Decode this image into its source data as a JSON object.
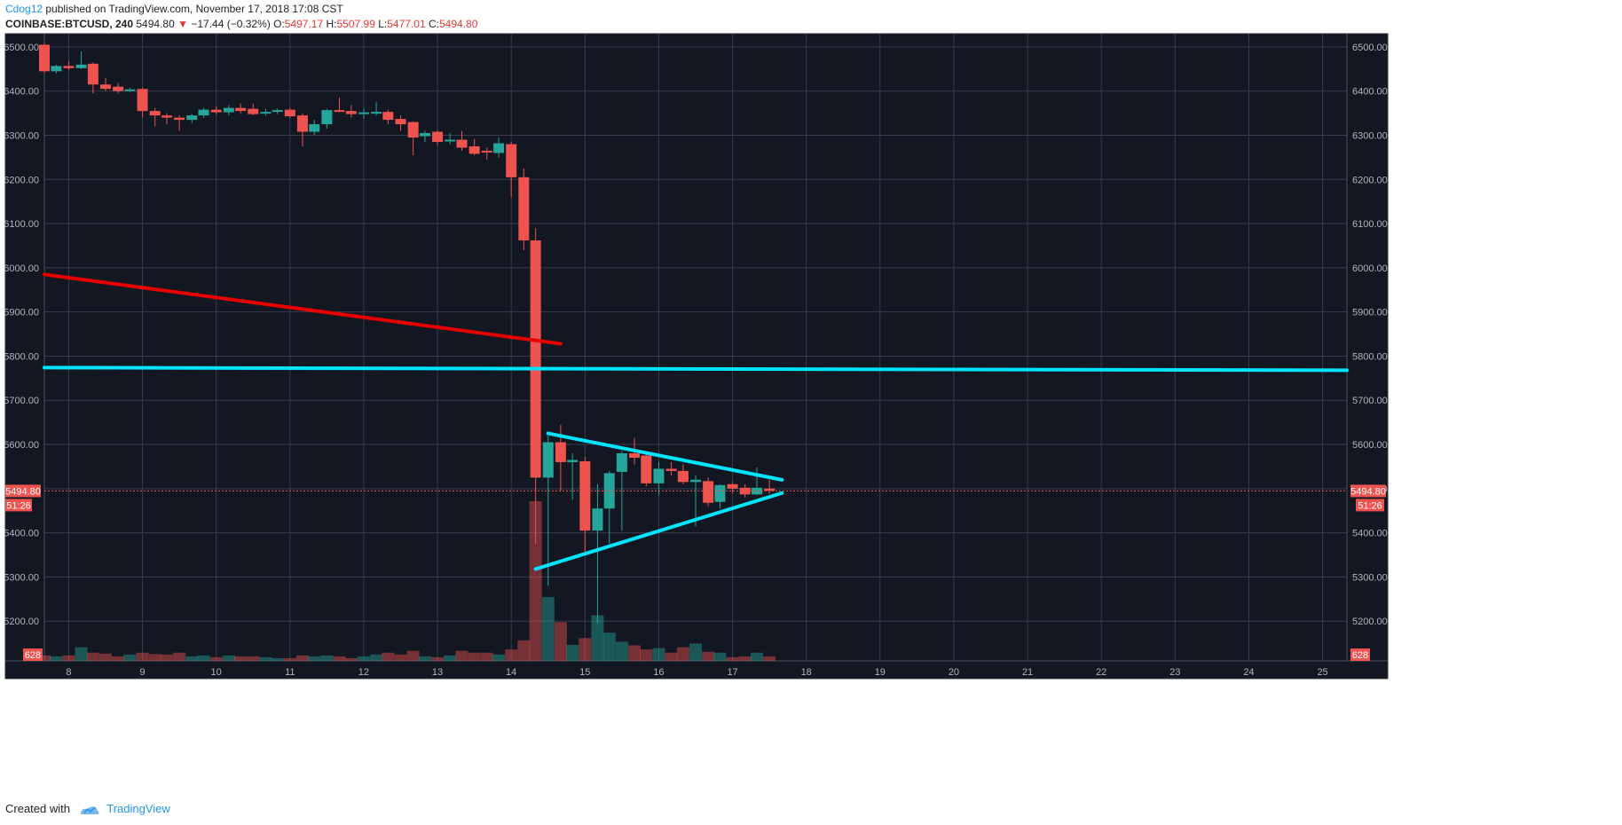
{
  "header": {
    "author": "Cdog12",
    "published_text": " published on TradingView.com, November 17, 2018 17:08 CST",
    "symbol": "COINBASE:BTCUSD, 240",
    "last_price": "5494.80",
    "change_arrow": "▼",
    "change": "−17.44 (−0.32%)",
    "open_label": "O:",
    "open": "5497.17",
    "high_label": "H:",
    "high": "5507.99",
    "low_label": "L:",
    "low": "5477.01",
    "close_label": "C:",
    "close": "5494.80"
  },
  "footer": {
    "created_with": "Created with",
    "brand": "TradingView"
  },
  "colors": {
    "background": "#131722",
    "grid": "#363c4e",
    "axis_text": "#b2b5be",
    "up": "#26a69a",
    "down": "#ef5350",
    "red_trendline": "#e60000",
    "cyan_lines": "#00e5ff"
  },
  "chart_data": {
    "type": "candlestick",
    "symbol": "COINBASE:BTCUSD",
    "interval": "240",
    "ylim": [
      5110,
      6530
    ],
    "y_ticks": [
      "5200.00",
      "5300.00",
      "5400.00",
      "5500.00",
      "5600.00",
      "5700.00",
      "5800.00",
      "5900.00",
      "6000.00",
      "6100.00",
      "6200.00",
      "6300.00",
      "6400.00",
      "6500.00"
    ],
    "x_ticks": [
      "8",
      "9",
      "10",
      "11",
      "12",
      "13",
      "14",
      "15",
      "16",
      "17",
      "18",
      "19",
      "20",
      "21",
      "22",
      "23",
      "24",
      "25"
    ],
    "xlim": [
      7.67,
      25.33
    ],
    "last_price_label": "5494.80",
    "last_price": 5494.8,
    "countdown_label": "51:26",
    "volume_label": "628",
    "candles": [
      {
        "t": 7.67,
        "o": 6505,
        "h": 6510,
        "l": 6440,
        "c": 6445
      },
      {
        "t": 7.83,
        "o": 6445,
        "h": 6460,
        "l": 6440,
        "c": 6457
      },
      {
        "t": 8.0,
        "o": 6457,
        "h": 6468,
        "l": 6448,
        "c": 6452
      },
      {
        "t": 8.17,
        "o": 6452,
        "h": 6490,
        "l": 6450,
        "c": 6460
      },
      {
        "t": 8.33,
        "o": 6462,
        "h": 6465,
        "l": 6395,
        "c": 6415
      },
      {
        "t": 8.5,
        "o": 6415,
        "h": 6430,
        "l": 6400,
        "c": 6405
      },
      {
        "t": 8.67,
        "o": 6410,
        "h": 6418,
        "l": 6395,
        "c": 6400
      },
      {
        "t": 8.83,
        "o": 6402,
        "h": 6408,
        "l": 6398,
        "c": 6404
      },
      {
        "t": 9.0,
        "o": 6405,
        "h": 6408,
        "l": 6340,
        "c": 6355
      },
      {
        "t": 9.17,
        "o": 6355,
        "h": 6362,
        "l": 6320,
        "c": 6345
      },
      {
        "t": 9.33,
        "o": 6345,
        "h": 6350,
        "l": 6325,
        "c": 6340
      },
      {
        "t": 9.5,
        "o": 6340,
        "h": 6345,
        "l": 6310,
        "c": 6335
      },
      {
        "t": 9.67,
        "o": 6335,
        "h": 6348,
        "l": 6328,
        "c": 6345
      },
      {
        "t": 9.83,
        "o": 6345,
        "h": 6362,
        "l": 6340,
        "c": 6358
      },
      {
        "t": 10.0,
        "o": 6358,
        "h": 6365,
        "l": 6348,
        "c": 6352
      },
      {
        "t": 10.17,
        "o": 6352,
        "h": 6368,
        "l": 6345,
        "c": 6362
      },
      {
        "t": 10.33,
        "o": 6362,
        "h": 6372,
        "l": 6350,
        "c": 6355
      },
      {
        "t": 10.5,
        "o": 6360,
        "h": 6372,
        "l": 6345,
        "c": 6348
      },
      {
        "t": 10.67,
        "o": 6350,
        "h": 6360,
        "l": 6345,
        "c": 6353
      },
      {
        "t": 10.83,
        "o": 6353,
        "h": 6360,
        "l": 6348,
        "c": 6357
      },
      {
        "t": 11.0,
        "o": 6358,
        "h": 6362,
        "l": 6340,
        "c": 6343
      },
      {
        "t": 11.17,
        "o": 6345,
        "h": 6350,
        "l": 6275,
        "c": 6308
      },
      {
        "t": 11.33,
        "o": 6308,
        "h": 6335,
        "l": 6300,
        "c": 6325
      },
      {
        "t": 11.5,
        "o": 6325,
        "h": 6360,
        "l": 6315,
        "c": 6357
      },
      {
        "t": 11.67,
        "o": 6357,
        "h": 6385,
        "l": 6352,
        "c": 6355
      },
      {
        "t": 11.83,
        "o": 6355,
        "h": 6368,
        "l": 6340,
        "c": 6348
      },
      {
        "t": 12.0,
        "o": 6350,
        "h": 6360,
        "l": 6338,
        "c": 6352
      },
      {
        "t": 12.17,
        "o": 6350,
        "h": 6375,
        "l": 6345,
        "c": 6353
      },
      {
        "t": 12.33,
        "o": 6353,
        "h": 6358,
        "l": 6325,
        "c": 6335
      },
      {
        "t": 12.5,
        "o": 6337,
        "h": 6345,
        "l": 6310,
        "c": 6325
      },
      {
        "t": 12.67,
        "o": 6330,
        "h": 6332,
        "l": 6255,
        "c": 6295
      },
      {
        "t": 12.83,
        "o": 6298,
        "h": 6310,
        "l": 6285,
        "c": 6305
      },
      {
        "t": 13.0,
        "o": 6308,
        "h": 6312,
        "l": 6278,
        "c": 6285
      },
      {
        "t": 13.17,
        "o": 6287,
        "h": 6305,
        "l": 6280,
        "c": 6290
      },
      {
        "t": 13.33,
        "o": 6290,
        "h": 6310,
        "l": 6265,
        "c": 6272
      },
      {
        "t": 13.5,
        "o": 6275,
        "h": 6292,
        "l": 6255,
        "c": 6258
      },
      {
        "t": 13.67,
        "o": 6265,
        "h": 6272,
        "l": 6245,
        "c": 6262
      },
      {
        "t": 13.83,
        "o": 6260,
        "h": 6295,
        "l": 6250,
        "c": 6282
      },
      {
        "t": 14.0,
        "o": 6280,
        "h": 6285,
        "l": 6160,
        "c": 6205
      },
      {
        "t": 14.17,
        "o": 6205,
        "h": 6225,
        "l": 6040,
        "c": 6062
      },
      {
        "t": 14.33,
        "o": 6062,
        "h": 6090,
        "l": 5375,
        "c": 5525
      },
      {
        "t": 14.5,
        "o": 5525,
        "h": 5620,
        "l": 5280,
        "c": 5605
      },
      {
        "t": 14.67,
        "o": 5605,
        "h": 5645,
        "l": 5495,
        "c": 5560
      },
      {
        "t": 14.83,
        "o": 5560,
        "h": 5580,
        "l": 5475,
        "c": 5565
      },
      {
        "t": 15.0,
        "o": 5562,
        "h": 5572,
        "l": 5355,
        "c": 5405
      },
      {
        "t": 15.17,
        "o": 5405,
        "h": 5510,
        "l": 5195,
        "c": 5455
      },
      {
        "t": 15.33,
        "o": 5455,
        "h": 5540,
        "l": 5375,
        "c": 5535
      },
      {
        "t": 15.5,
        "o": 5538,
        "h": 5585,
        "l": 5405,
        "c": 5580
      },
      {
        "t": 15.67,
        "o": 5580,
        "h": 5615,
        "l": 5555,
        "c": 5570
      },
      {
        "t": 15.83,
        "o": 5575,
        "h": 5585,
        "l": 5505,
        "c": 5512
      },
      {
        "t": 16.0,
        "o": 5512,
        "h": 5560,
        "l": 5485,
        "c": 5545
      },
      {
        "t": 16.17,
        "o": 5545,
        "h": 5560,
        "l": 5530,
        "c": 5540
      },
      {
        "t": 16.33,
        "o": 5540,
        "h": 5555,
        "l": 5510,
        "c": 5515
      },
      {
        "t": 16.5,
        "o": 5515,
        "h": 5530,
        "l": 5415,
        "c": 5520
      },
      {
        "t": 16.67,
        "o": 5517,
        "h": 5525,
        "l": 5460,
        "c": 5468
      },
      {
        "t": 16.83,
        "o": 5470,
        "h": 5510,
        "l": 5455,
        "c": 5508
      },
      {
        "t": 17.0,
        "o": 5510,
        "h": 5515,
        "l": 5490,
        "c": 5500
      },
      {
        "t": 17.17,
        "o": 5502,
        "h": 5510,
        "l": 5480,
        "c": 5487
      },
      {
        "t": 17.33,
        "o": 5487,
        "h": 5548,
        "l": 5485,
        "c": 5502
      },
      {
        "t": 17.5,
        "o": 5500,
        "h": 5520,
        "l": 5488,
        "c": 5495
      }
    ],
    "volumes": [
      12,
      10,
      12,
      30,
      18,
      16,
      10,
      14,
      18,
      15,
      14,
      18,
      10,
      12,
      8,
      12,
      10,
      10,
      8,
      6,
      6,
      12,
      10,
      12,
      10,
      6,
      10,
      14,
      18,
      14,
      22,
      10,
      8,
      12,
      22,
      18,
      18,
      14,
      25,
      45,
      350,
      140,
      85,
      35,
      50,
      100,
      62,
      42,
      34,
      25,
      28,
      18,
      30,
      38,
      20,
      18,
      8,
      10,
      18,
      10
    ],
    "volume_max": 350,
    "trendlines": [
      {
        "name": "red-downtrend",
        "color": "#e60000",
        "x1": 7.67,
        "y1": 5985,
        "x2": 14.67,
        "y2": 5828
      },
      {
        "name": "horizontal-support",
        "color": "#00e5ff",
        "x1": 7.67,
        "y1": 5774,
        "x2": 25.33,
        "y2": 5768
      },
      {
        "name": "triangle-upper",
        "color": "#00e5ff",
        "x1": 14.5,
        "y1": 5625,
        "x2": 17.67,
        "y2": 5520
      },
      {
        "name": "triangle-lower",
        "color": "#00e5ff",
        "x1": 14.33,
        "y1": 5318,
        "x2": 17.67,
        "y2": 5490
      }
    ]
  }
}
